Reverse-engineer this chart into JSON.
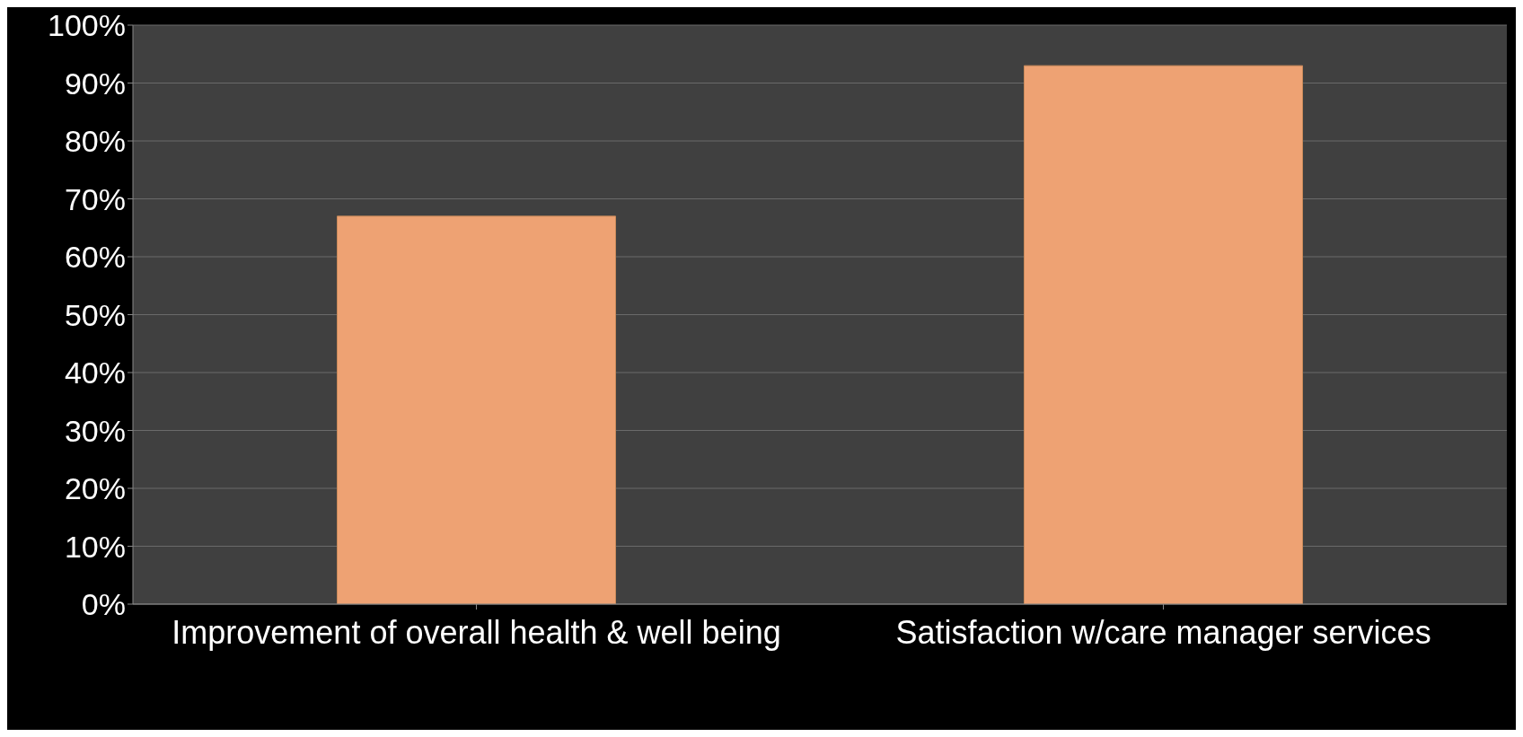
{
  "chart_data": {
    "type": "bar",
    "categories": [
      "Improvement of overall health & well being",
      "Satisfaction w/care  manager services"
    ],
    "values": [
      67,
      93
    ],
    "color": "#eea273",
    "ylim": [
      0,
      100
    ],
    "yticks": [
      {
        "value": 0,
        "label": "0%"
      },
      {
        "value": 10,
        "label": "10%"
      },
      {
        "value": 20,
        "label": "20%"
      },
      {
        "value": 30,
        "label": "30%"
      },
      {
        "value": 40,
        "label": "40%"
      },
      {
        "value": 50,
        "label": "50%"
      },
      {
        "value": 60,
        "label": "60%"
      },
      {
        "value": 70,
        "label": "70%"
      },
      {
        "value": 80,
        "label": "80%"
      },
      {
        "value": 90,
        "label": "90%"
      },
      {
        "value": 100,
        "label": "100%"
      }
    ],
    "grid": "y",
    "legend": false
  }
}
